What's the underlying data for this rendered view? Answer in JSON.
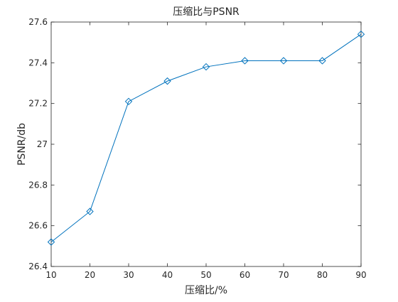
{
  "chart_data": {
    "type": "line",
    "title": "压缩比与PSNR",
    "xlabel": "压缩比/%",
    "ylabel": "PSNR/db",
    "x": [
      10,
      20,
      30,
      40,
      50,
      60,
      70,
      80,
      90
    ],
    "series": [
      {
        "values": [
          26.52,
          26.67,
          27.21,
          27.31,
          27.38,
          27.41,
          27.41,
          27.41,
          27.54
        ],
        "color": "#0072BD",
        "marker": "diamond"
      }
    ],
    "xlim": [
      10,
      90
    ],
    "ylim": [
      26.4,
      27.6
    ],
    "xticks": [
      "10",
      "20",
      "30",
      "40",
      "50",
      "60",
      "70",
      "80",
      "90"
    ],
    "yticks": [
      "26.4",
      "26.6",
      "26.8",
      "27",
      "27.2",
      "27.4",
      "27.6"
    ],
    "grid": false,
    "legend": "none"
  }
}
